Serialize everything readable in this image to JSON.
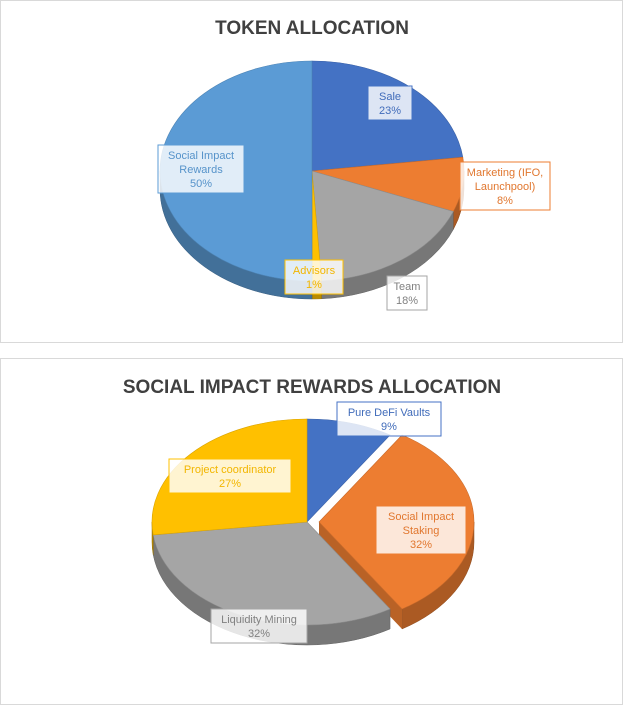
{
  "chart_data": [
    {
      "type": "pie",
      "title": "TOKEN ALLOCATION",
      "slices": [
        {
          "label": "Sale",
          "value": 23,
          "display": "23%",
          "color": "#4472c4",
          "label_lines": [
            "Sale"
          ]
        },
        {
          "label": "Marketing (IFO, Launchpool)",
          "value": 8,
          "display": "8%",
          "color": "#ed7d31",
          "label_lines": [
            "Marketing (IFO,",
            "Launchpool)"
          ]
        },
        {
          "label": "Team",
          "value": 18,
          "display": "18%",
          "color": "#a5a5a5",
          "label_lines": [
            "Team"
          ]
        },
        {
          "label": "Advisors",
          "value": 1,
          "display": "1%",
          "color": "#ffc000",
          "label_lines": [
            "Advisors"
          ]
        },
        {
          "label": "Social Impact Rewards",
          "value": 50,
          "display": "50%",
          "color": "#5b9bd5",
          "label_lines": [
            "Social Impact",
            "Rewards"
          ]
        }
      ],
      "style": "3d"
    },
    {
      "type": "pie",
      "title": "SOCIAL IMPACT REWARDS ALLOCATION",
      "slices": [
        {
          "label": "Pure DeFi Vaults",
          "value": 9,
          "display": "9%",
          "color": "#4472c4",
          "label_lines": [
            "Pure DeFi Vaults"
          ]
        },
        {
          "label": "Social Impact Staking",
          "value": 32,
          "display": "32%",
          "color": "#ed7d31",
          "label_lines": [
            "Social Impact",
            "Staking"
          ]
        },
        {
          "label": "Liquidity Mining",
          "value": 32,
          "display": "32%",
          "color": "#a5a5a5",
          "label_lines": [
            "Liquidity Mining"
          ]
        },
        {
          "label": "Project coordinator",
          "value": 27,
          "display": "27%",
          "color": "#ffc000",
          "label_lines": [
            "Project coordinator"
          ]
        }
      ],
      "style": "3d"
    }
  ]
}
